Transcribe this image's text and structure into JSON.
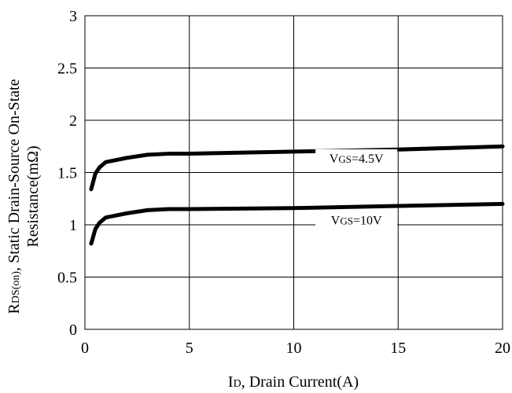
{
  "chart_data": {
    "type": "line",
    "title": "",
    "xlabel": {
      "prefix": "I",
      "sub": "D",
      "suffix": ", Drain Current(A)"
    },
    "ylabel": {
      "line1_prefix": "R",
      "line1_sub": "DS(on)",
      "line1_suffix": ", Static Drain-Source On-State",
      "line2": "Resistance(mΩ)"
    },
    "xlim": [
      0,
      20
    ],
    "ylim": [
      0,
      3
    ],
    "xticks": [
      "0",
      "5",
      "10",
      "15",
      "20"
    ],
    "yticks": [
      "0",
      "0.5",
      "1",
      "1.5",
      "2",
      "2.5",
      "3"
    ],
    "grid": true,
    "series": [
      {
        "label_prefix": "V",
        "label_sub": "GS",
        "label_suffix": "=4.5V",
        "x": [
          0.3,
          0.5,
          0.7,
          1.0,
          1.5,
          2.0,
          3.0,
          4.0,
          5.0,
          10.0,
          15.0,
          20.0
        ],
        "y": [
          1.34,
          1.49,
          1.55,
          1.6,
          1.62,
          1.64,
          1.67,
          1.68,
          1.68,
          1.7,
          1.72,
          1.75
        ]
      },
      {
        "label_prefix": "V",
        "label_sub": "GS",
        "label_suffix": "=10V",
        "x": [
          0.3,
          0.5,
          0.7,
          1.0,
          1.5,
          2.0,
          3.0,
          4.0,
          5.0,
          10.0,
          15.0,
          20.0
        ],
        "y": [
          0.82,
          0.96,
          1.02,
          1.07,
          1.09,
          1.11,
          1.14,
          1.15,
          1.15,
          1.16,
          1.18,
          1.2
        ]
      }
    ]
  }
}
